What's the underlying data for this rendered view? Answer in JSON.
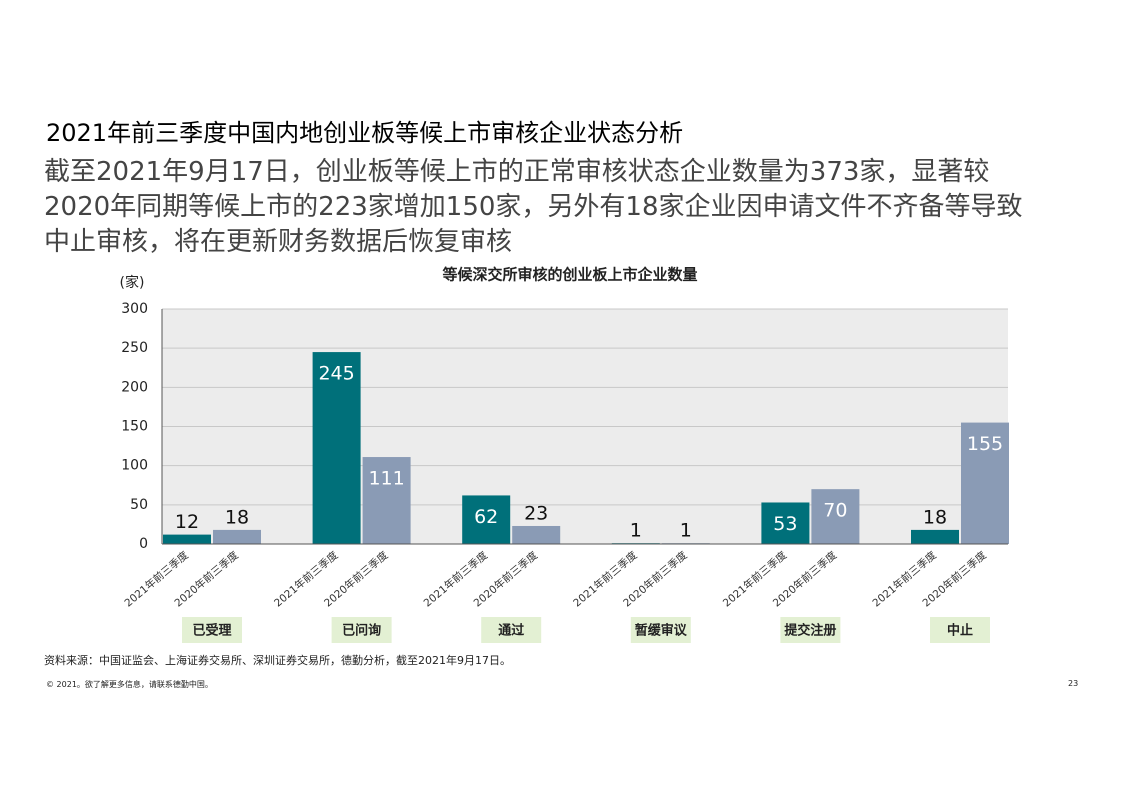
{
  "header": {
    "title": "2021年前三季度中国内地创业板等候上市审核企业状态分析",
    "subtitle_lines": [
      "截至2021年9月17日，创业板等候上市的正常审核状态企业数量为373家，显著较",
      "2020年同期等候上市的223家增加150家，另外有18家企业因申请文件不齐备等导致",
      "中止审核，将在更新财务数据后恢复审核"
    ]
  },
  "chart_data": {
    "type": "bar",
    "title": "等候深交所审核的创业板上市企业数量",
    "y_label": "(家)",
    "categories": [
      "已受理",
      "已问询",
      "通过",
      "暂缓审议",
      "提交注册",
      "中止"
    ],
    "series": [
      {
        "name": "2021年前三季度",
        "color": "#00707a",
        "values": [
          12,
          245,
          62,
          1,
          53,
          18
        ]
      },
      {
        "name": "2020年前三季度",
        "color": "#8a9bb5",
        "values": [
          18,
          111,
          23,
          1,
          70,
          155
        ]
      }
    ],
    "ylim": [
      0,
      300
    ],
    "yticks": [
      0,
      50,
      100,
      150,
      200,
      250,
      300
    ],
    "grid": true
  },
  "source": "资料来源：中国证监会、上海证券交易所、深圳证券交易所，德勤分析，截至2021年9月17日。",
  "footer": "© 2021。欲了解更多信息，请联系德勤中国。",
  "page_number": "23"
}
